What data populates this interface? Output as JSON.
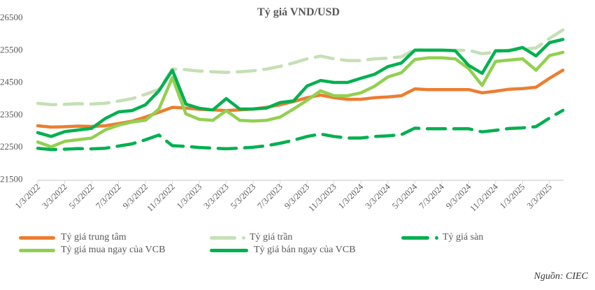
{
  "chart_data": {
    "type": "line",
    "title": "Tỷ giá VND/USD",
    "xlabel": "",
    "ylabel": "",
    "ylim": [
      21500,
      26500
    ],
    "yticks": [
      "26500",
      "25500",
      "24500",
      "23500",
      "22500",
      "21500"
    ],
    "ytick_values": [
      26500,
      25500,
      24500,
      23500,
      22500,
      21500
    ],
    "x_start": "1/2022",
    "x_step": "1 month",
    "xticks": [
      "1/3/2022",
      "3/3/2022",
      "5/3/2022",
      "7/3/2022",
      "9/3/2022",
      "11/3/2022",
      "1/3/2023",
      "3/3/2023",
      "5/3/2023",
      "7/3/2023",
      "9/3/2023",
      "11/3/2023",
      "1/3/2024",
      "3/3/2024",
      "5/3/2024",
      "7/3/2024",
      "9/3/2024",
      "11/3/2024",
      "1/3/2025",
      "3/3/2025"
    ],
    "grid": false,
    "legend_position": "bottom",
    "series": [
      {
        "name": "Tỷ giá trung tâm",
        "color": "#ed7d31",
        "style": "solid",
        "values": [
          23130,
          23090,
          23100,
          23120,
          23110,
          23130,
          23200,
          23270,
          23400,
          23550,
          23700,
          23680,
          23640,
          23620,
          23600,
          23620,
          23650,
          23700,
          23780,
          23880,
          24000,
          24080,
          24000,
          23950,
          23950,
          24000,
          24020,
          24060,
          24270,
          24250,
          24250,
          24250,
          24250,
          24150,
          24200,
          24260,
          24280,
          24320,
          24600,
          24850
        ]
      },
      {
        "name": "Tỷ giá trần",
        "color": "#c5e0b4",
        "style": "dashed",
        "values": [
          23824,
          23783,
          23793,
          23814,
          23803,
          23824,
          23896,
          23968,
          24102,
          24257,
          24885,
          24864,
          24822,
          24801,
          24780,
          24801,
          24833,
          24885,
          24969,
          25074,
          25200,
          25284,
          25200,
          25148,
          25148,
          25200,
          25221,
          25263,
          25484,
          25463,
          25463,
          25463,
          25463,
          25358,
          25410,
          25473,
          25494,
          25536,
          25830,
          26093
        ]
      },
      {
        "name": "Tỷ giá sàn",
        "color": "#00b050",
        "style": "dashed",
        "values": [
          22436,
          22397,
          22407,
          22426,
          22417,
          22436,
          22504,
          22572,
          22698,
          22844,
          22515,
          22496,
          22458,
          22439,
          22420,
          22439,
          22468,
          22515,
          22591,
          22686,
          22800,
          22876,
          22800,
          22753,
          22753,
          22800,
          22819,
          22857,
          23057,
          23038,
          23038,
          23038,
          23038,
          22943,
          22990,
          23047,
          23066,
          23104,
          23370,
          23608
        ]
      },
      {
        "name": "Tỷ giá mua ngay của VCB",
        "color": "#92d050",
        "style": "solid",
        "values": [
          22630,
          22480,
          22650,
          22700,
          22750,
          23000,
          23150,
          23250,
          23300,
          23650,
          24620,
          23500,
          23330,
          23300,
          23600,
          23300,
          23280,
          23300,
          23400,
          23650,
          23920,
          24210,
          24060,
          24060,
          24150,
          24350,
          24640,
          24770,
          25180,
          25230,
          25230,
          25200,
          24900,
          24380,
          25120,
          25160,
          25200,
          24850,
          25300,
          25400
        ]
      },
      {
        "name": "Tỷ giá bán ngay của VCB",
        "color": "#00b050",
        "style": "solid",
        "values": [
          22920,
          22800,
          22950,
          23000,
          23050,
          23350,
          23560,
          23600,
          23780,
          24210,
          24850,
          23800,
          23670,
          23620,
          23970,
          23650,
          23650,
          23680,
          23850,
          23900,
          24360,
          24530,
          24470,
          24470,
          24600,
          24720,
          24960,
          25070,
          25470,
          25470,
          25470,
          25450,
          25000,
          24750,
          25450,
          25450,
          25550,
          25290,
          25700,
          25800
        ]
      }
    ]
  },
  "source": "Nguồn: CIEC"
}
